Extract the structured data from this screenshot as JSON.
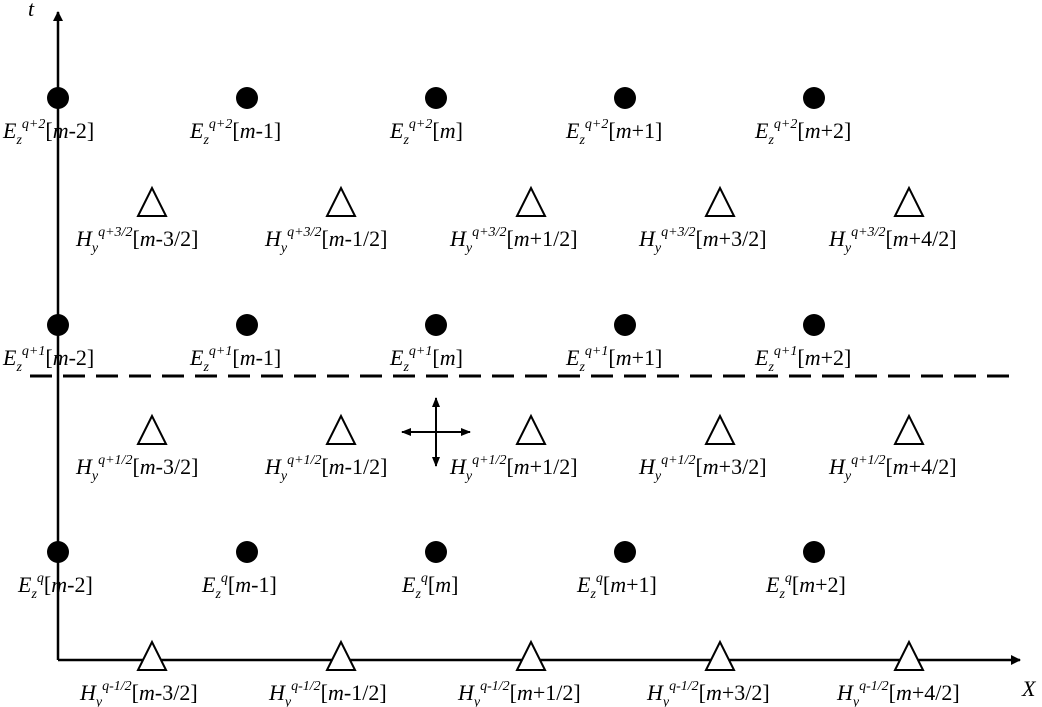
{
  "axes": {
    "x_label": "X",
    "t_label": "t"
  },
  "e_rows": [
    {
      "row": "q+2",
      "sup": "q+2",
      "labels": [
        "m-2",
        "m-1",
        "m",
        "m+1",
        "m+2"
      ]
    },
    {
      "row": "q+1",
      "sup": "q+1",
      "labels": [
        "m-2",
        "m-1",
        "m",
        "m+1",
        "m+2"
      ]
    },
    {
      "row": "q",
      "sup": "q",
      "labels": [
        "m-2",
        "m-1",
        "m",
        "m+1",
        "m+2"
      ]
    }
  ],
  "h_rows": [
    {
      "row": "q+3/2",
      "sup": "q+3/2",
      "labels": [
        "m-3/2",
        "m-1/2",
        "m+1/2",
        "m+3/2",
        "m+4/2"
      ]
    },
    {
      "row": "q+1/2",
      "sup": "q+1/2",
      "labels": [
        "m-3/2",
        "m-1/2",
        "m+1/2",
        "m+3/2",
        "m+4/2"
      ]
    },
    {
      "row": "q-1/2",
      "sup": "q-1/2",
      "labels": [
        "m-3/2",
        "m-1/2",
        "m+1/2",
        "m+3/2",
        "m+4/2"
      ]
    }
  ],
  "symbols": {
    "e_field": "E",
    "e_sub": "z",
    "h_field": "H",
    "h_sub": "y"
  }
}
